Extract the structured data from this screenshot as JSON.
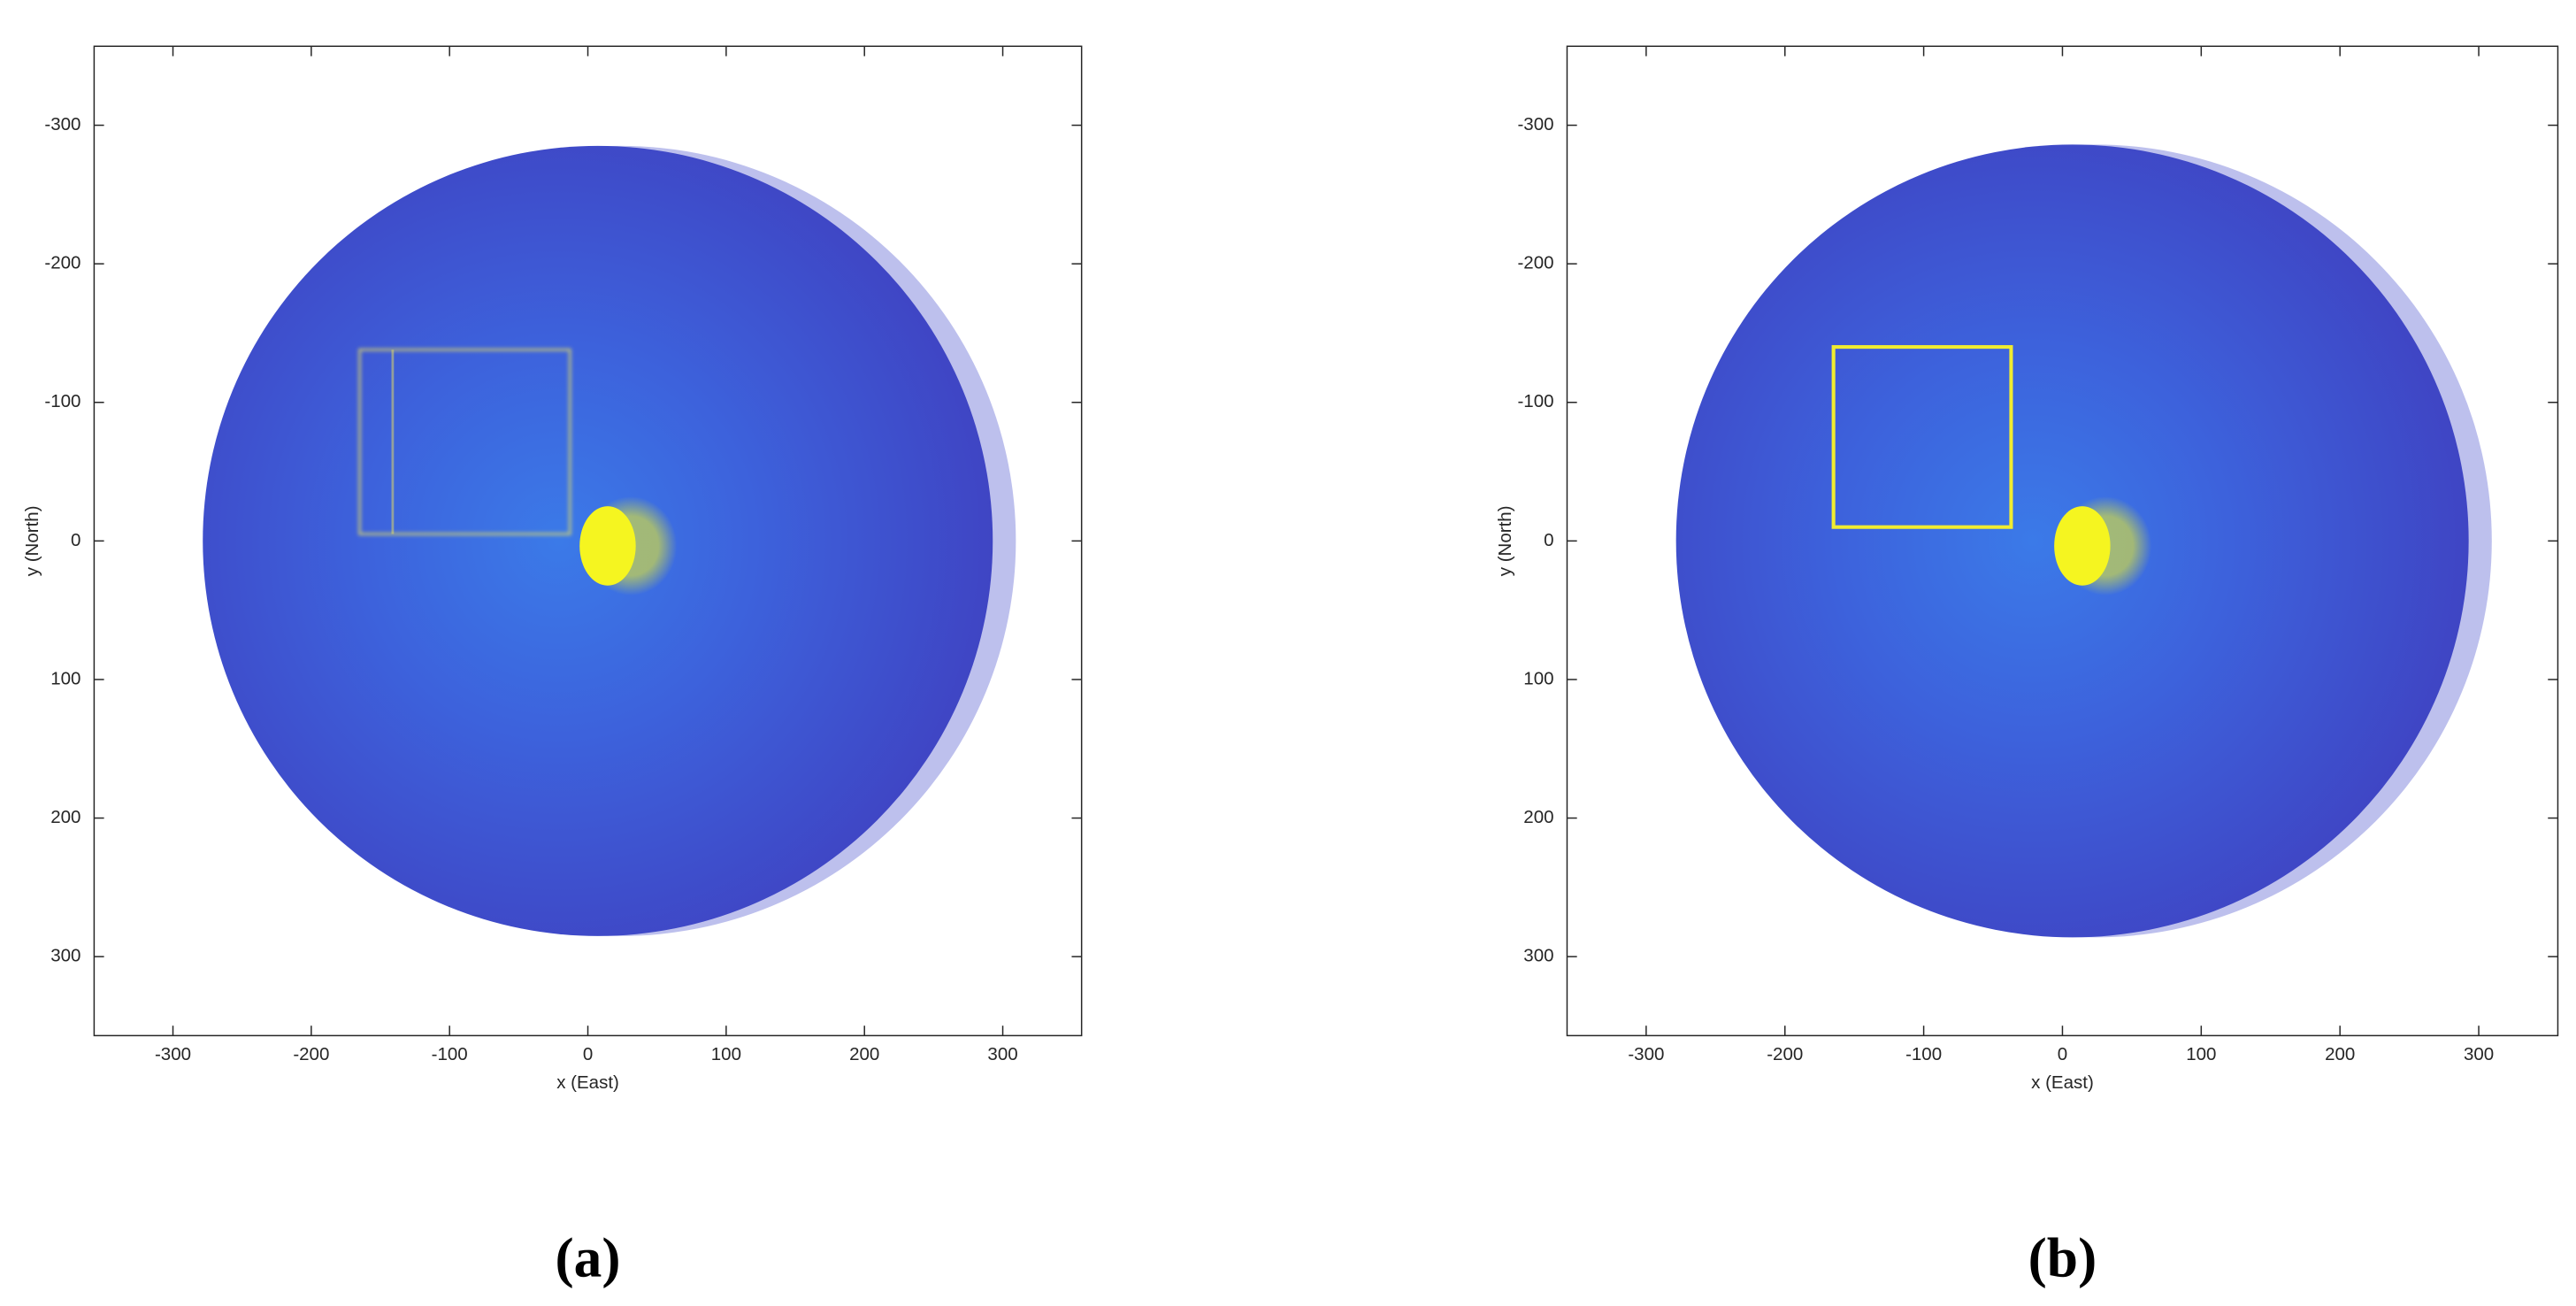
{
  "chart_data": [
    {
      "type": "image",
      "caption": "(a)",
      "xlabel": "x (East)",
      "ylabel": "y (North)",
      "xlim": [
        -357,
        357
      ],
      "ylim": [
        -357,
        357
      ],
      "y_reversed": true,
      "xticks": [
        -300,
        -200,
        -100,
        0,
        100,
        200,
        300
      ],
      "yticks": [
        -300,
        -200,
        -100,
        0,
        100,
        200,
        300
      ],
      "box": {
        "x": [
          -165,
          -13
        ],
        "y": [
          -138,
          -5
        ]
      },
      "box_color": "#e8e060",
      "box_style": "blurred"
    },
    {
      "type": "image",
      "caption": "(b)",
      "xlabel": "x (East)",
      "ylabel": "y (North)",
      "xlim": [
        -357,
        357
      ],
      "ylim": [
        -357,
        357
      ],
      "y_reversed": true,
      "xticks": [
        -300,
        -200,
        -100,
        0,
        100,
        200,
        300
      ],
      "yticks": [
        -300,
        -200,
        -100,
        0,
        100,
        200,
        300
      ],
      "box": {
        "x": [
          -165,
          -37
        ],
        "y": [
          -140,
          -10
        ]
      },
      "box_color": "#f0ec30",
      "box_style": "sharp"
    }
  ]
}
